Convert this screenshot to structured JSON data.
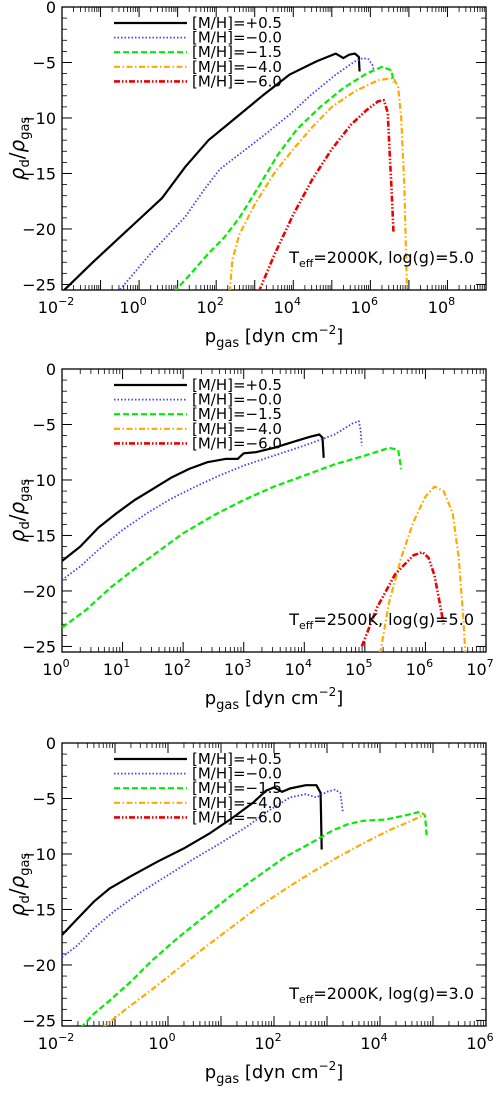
{
  "chart_data": [
    {
      "type": "line",
      "xlabel": "p",
      "xlabel_sub": "gas",
      "xlabel_unit_pre": " [dyn cm",
      "xlabel_unit_exp": "−2",
      "xlabel_unit_post": "]",
      "ylabel_num": "ρ",
      "ylabel_num_sub": "d",
      "ylabel_den": "ρ",
      "ylabel_den_sub": "gas",
      "xscale": "log",
      "xlim": [
        -2,
        9
      ],
      "ylim": [
        -25.5,
        0
      ],
      "xticks_exp": [
        -2,
        0,
        2,
        4,
        6,
        8
      ],
      "yticks": [
        0,
        -5,
        -10,
        -15,
        -20,
        -25
      ],
      "grid": false,
      "legend_position": "top-left",
      "annotation": {
        "T": "T",
        "sub": "eff",
        "rest": "=2000K, log(g)=5.0",
        "position": "bottom-right"
      },
      "series": [
        {
          "name": "[M/H]=+0.5",
          "color": "#000000",
          "dash": "solid",
          "points": [
            [
              -2,
              -25.7
            ],
            [
              -1.2,
              -23
            ],
            [
              -0.3,
              -20.1
            ],
            [
              0.6,
              -17.2
            ],
            [
              1.2,
              -14.4
            ],
            [
              1.8,
              -12
            ],
            [
              2.5,
              -10
            ],
            [
              3.2,
              -8
            ],
            [
              3.9,
              -6.1
            ],
            [
              4.6,
              -4.9
            ],
            [
              5.1,
              -4.2
            ],
            [
              5.3,
              -4.6
            ],
            [
              5.45,
              -4.3
            ],
            [
              5.6,
              -4.2
            ],
            [
              5.7,
              -4.5
            ],
            [
              5.72,
              -5.8
            ]
          ]
        },
        {
          "name": "[M/H]=−0.0",
          "color": "#4040ff",
          "dash": "dotted",
          "points": [
            [
              -0.55,
              -25.7
            ],
            [
              0.3,
              -22.2
            ],
            [
              1.2,
              -18.9
            ],
            [
              1.7,
              -16.4
            ],
            [
              2.1,
              -14.6
            ],
            [
              2.7,
              -13
            ],
            [
              3.3,
              -11.4
            ],
            [
              3.9,
              -9.7
            ],
            [
              4.5,
              -7.8
            ],
            [
              5.1,
              -6.1
            ],
            [
              5.6,
              -4.9
            ],
            [
              5.8,
              -4.6
            ],
            [
              5.95,
              -4.7
            ],
            [
              6.05,
              -5.2
            ],
            [
              6.1,
              -5.8
            ]
          ]
        },
        {
          "name": "[M/H]=−1.5",
          "color": "#00ee00",
          "dash": "dashed",
          "points": [
            [
              0.9,
              -25.7
            ],
            [
              1.35,
              -24
            ],
            [
              1.8,
              -22.2
            ],
            [
              2.2,
              -20.8
            ],
            [
              2.6,
              -19
            ],
            [
              3.1,
              -16.2
            ],
            [
              3.6,
              -13.3
            ],
            [
              4.1,
              -11
            ],
            [
              4.7,
              -9
            ],
            [
              5.3,
              -7.3
            ],
            [
              5.9,
              -6
            ],
            [
              6.3,
              -5.4
            ],
            [
              6.55,
              -5.7
            ],
            [
              6.6,
              -6.8
            ]
          ]
        },
        {
          "name": "[M/H]=−4.0",
          "color": "#ffaa00",
          "dash": "dashdot",
          "points": [
            [
              2.35,
              -25.7
            ],
            [
              2.42,
              -22.8
            ],
            [
              2.6,
              -20.5
            ],
            [
              3,
              -17.8
            ],
            [
              3.5,
              -15
            ],
            [
              4,
              -12.8
            ],
            [
              4.5,
              -10.8
            ],
            [
              5,
              -9
            ],
            [
              5.6,
              -7.6
            ],
            [
              6.2,
              -6.6
            ],
            [
              6.6,
              -6.4
            ],
            [
              6.72,
              -7.2
            ],
            [
              6.8,
              -10
            ],
            [
              6.88,
              -16
            ],
            [
              6.95,
              -25.7
            ]
          ]
        },
        {
          "name": "[M/H]=−6.0",
          "color": "#ee0000",
          "dash": "dashdotdot",
          "points": [
            [
              3.1,
              -25.7
            ],
            [
              3.5,
              -22.4
            ],
            [
              4,
              -18.7
            ],
            [
              4.5,
              -15.5
            ],
            [
              5,
              -12.8
            ],
            [
              5.5,
              -10.6
            ],
            [
              5.9,
              -9.3
            ],
            [
              6.2,
              -8.5
            ],
            [
              6.35,
              -8.4
            ],
            [
              6.45,
              -9.5
            ],
            [
              6.5,
              -13
            ],
            [
              6.55,
              -16.5
            ],
            [
              6.6,
              -20.3
            ]
          ]
        }
      ]
    },
    {
      "type": "line",
      "xlabel": "p",
      "xlabel_sub": "gas",
      "xlabel_unit_pre": " [dyn cm",
      "xlabel_unit_exp": "−2",
      "xlabel_unit_post": "]",
      "ylabel_num": "ρ",
      "ylabel_num_sub": "d",
      "ylabel_den": "ρ",
      "ylabel_den_sub": "gas",
      "xscale": "log",
      "xlim": [
        0,
        7
      ],
      "ylim": [
        -25.5,
        0
      ],
      "xticks_exp": [
        0,
        1,
        2,
        3,
        4,
        5,
        6,
        7
      ],
      "yticks": [
        0,
        -5,
        -10,
        -15,
        -20,
        -25
      ],
      "grid": false,
      "legend_position": "top-left",
      "annotation": {
        "T": "T",
        "sub": "eff",
        "rest": "=2500K, log(g)=5.0",
        "position": "bottom-right"
      },
      "series": [
        {
          "name": "[M/H]=+0.5",
          "color": "#000000",
          "dash": "solid",
          "points": [
            [
              0,
              -17.3
            ],
            [
              0.3,
              -16
            ],
            [
              0.6,
              -14.3
            ],
            [
              0.9,
              -13
            ],
            [
              1.2,
              -11.8
            ],
            [
              1.5,
              -10.8
            ],
            [
              1.8,
              -9.8
            ],
            [
              2.1,
              -9
            ],
            [
              2.4,
              -8.4
            ],
            [
              2.7,
              -8.1
            ],
            [
              2.9,
              -8.1
            ],
            [
              3,
              -7.6
            ],
            [
              3.2,
              -7.5
            ],
            [
              3.5,
              -7.1
            ],
            [
              3.8,
              -6.6
            ],
            [
              4.1,
              -6.1
            ],
            [
              4.25,
              -5.9
            ],
            [
              4.3,
              -6.2
            ],
            [
              4.32,
              -8
            ]
          ]
        },
        {
          "name": "[M/H]=−0.0",
          "color": "#4040ff",
          "dash": "dotted",
          "points": [
            [
              0,
              -19
            ],
            [
              0.3,
              -17.8
            ],
            [
              0.6,
              -16.3
            ],
            [
              1,
              -14.5
            ],
            [
              1.4,
              -13
            ],
            [
              1.8,
              -11.7
            ],
            [
              2.2,
              -10.6
            ],
            [
              2.6,
              -9.6
            ],
            [
              3,
              -8.7
            ],
            [
              3.5,
              -7.8
            ],
            [
              4,
              -6.9
            ],
            [
              4.5,
              -5.9
            ],
            [
              4.8,
              -4.9
            ],
            [
              4.9,
              -4.7
            ],
            [
              4.93,
              -5.5
            ],
            [
              4.95,
              -6.9
            ]
          ]
        },
        {
          "name": "[M/H]=−1.5",
          "color": "#00ee00",
          "dash": "dashed",
          "points": [
            [
              0,
              -23.3
            ],
            [
              0.4,
              -21.7
            ],
            [
              0.8,
              -19.7
            ],
            [
              1.2,
              -18
            ],
            [
              1.6,
              -16.4
            ],
            [
              2,
              -14.8
            ],
            [
              2.5,
              -13.2
            ],
            [
              3,
              -11.8
            ],
            [
              3.5,
              -10.6
            ],
            [
              4,
              -9.6
            ],
            [
              4.5,
              -8.6
            ],
            [
              5,
              -7.8
            ],
            [
              5.4,
              -7.1
            ],
            [
              5.55,
              -7.3
            ],
            [
              5.6,
              -9
            ]
          ]
        },
        {
          "name": "[M/H]=−4.0",
          "color": "#ffaa00",
          "dash": "dashdot",
          "points": [
            [
              5.25,
              -25.7
            ],
            [
              5.4,
              -21
            ],
            [
              5.6,
              -17
            ],
            [
              5.8,
              -13.8
            ],
            [
              6,
              -11.5
            ],
            [
              6.15,
              -10.6
            ],
            [
              6.3,
              -11
            ],
            [
              6.45,
              -13
            ],
            [
              6.55,
              -17
            ],
            [
              6.62,
              -22
            ],
            [
              6.66,
              -25.7
            ]
          ]
        },
        {
          "name": "[M/H]=−6.0",
          "color": "#ee0000",
          "dash": "dashdotdot",
          "points": [
            [
              4.95,
              -25
            ],
            [
              5.2,
              -21.5
            ],
            [
              5.5,
              -18.5
            ],
            [
              5.8,
              -16.8
            ],
            [
              5.95,
              -16.5
            ],
            [
              6.05,
              -17
            ],
            [
              6.15,
              -18.6
            ],
            [
              6.25,
              -21.5
            ],
            [
              6.3,
              -23
            ]
          ]
        }
      ]
    },
    {
      "type": "line",
      "xlabel": "p",
      "xlabel_sub": "gas",
      "xlabel_unit_pre": " [dyn cm",
      "xlabel_unit_exp": "−2",
      "xlabel_unit_post": "]",
      "ylabel_num": "ρ",
      "ylabel_num_sub": "d",
      "ylabel_den": "ρ",
      "ylabel_den_sub": "gas",
      "xscale": "log",
      "xlim": [
        -2,
        6
      ],
      "ylim": [
        -25.5,
        0
      ],
      "xticks_exp": [
        -2,
        0,
        2,
        4,
        6
      ],
      "yticks": [
        0,
        -5,
        -10,
        -15,
        -20,
        -25
      ],
      "grid": false,
      "legend_position": "top-left",
      "annotation": {
        "T": "T",
        "sub": "eff",
        "rest": "=2000K, log(g)=3.0",
        "position": "bottom-right"
      },
      "series": [
        {
          "name": "[M/H]=+0.5",
          "color": "#000000",
          "dash": "solid",
          "points": [
            [
              -2,
              -17.3
            ],
            [
              -1.7,
              -15.8
            ],
            [
              -1.4,
              -14.3
            ],
            [
              -1.1,
              -13.1
            ],
            [
              -0.7,
              -12
            ],
            [
              -0.2,
              -10.7
            ],
            [
              0.3,
              -9.5
            ],
            [
              0.8,
              -8.1
            ],
            [
              1.2,
              -6.8
            ],
            [
              1.6,
              -5.4
            ],
            [
              1.85,
              -4.3
            ],
            [
              2,
              -4
            ],
            [
              2.15,
              -4.4
            ],
            [
              2.3,
              -4.1
            ],
            [
              2.6,
              -3.8
            ],
            [
              2.8,
              -3.8
            ],
            [
              2.88,
              -4.5
            ],
            [
              2.9,
              -9.6
            ]
          ]
        },
        {
          "name": "[M/H]=−0.0",
          "color": "#4040ff",
          "dash": "dotted",
          "points": [
            [
              -2,
              -19.3
            ],
            [
              -1.7,
              -18.2
            ],
            [
              -1.4,
              -16.7
            ],
            [
              -1,
              -15.1
            ],
            [
              -0.5,
              -13.4
            ],
            [
              0,
              -11.9
            ],
            [
              0.5,
              -10.4
            ],
            [
              1,
              -9
            ],
            [
              1.5,
              -7.5
            ],
            [
              1.9,
              -6.1
            ],
            [
              2.3,
              -4.9
            ],
            [
              2.6,
              -4.6
            ],
            [
              2.8,
              -4.9
            ],
            [
              3,
              -4.4
            ],
            [
              3.15,
              -4.2
            ],
            [
              3.25,
              -4.5
            ],
            [
              3.3,
              -6.3
            ]
          ]
        },
        {
          "name": "[M/H]=−1.5",
          "color": "#00ee00",
          "dash": "dashed",
          "points": [
            [
              -1.65,
              -25.7
            ],
            [
              -1.4,
              -24.4
            ],
            [
              -1.1,
              -23.2
            ],
            [
              -0.7,
              -21.5
            ],
            [
              -0.3,
              -19.6
            ],
            [
              0.2,
              -17.5
            ],
            [
              0.7,
              -15.6
            ],
            [
              1.2,
              -13.7
            ],
            [
              1.7,
              -12
            ],
            [
              2.2,
              -10.3
            ],
            [
              2.7,
              -9
            ],
            [
              3.1,
              -7.9
            ],
            [
              3.4,
              -7.3
            ],
            [
              3.7,
              -7
            ],
            [
              4.1,
              -6.9
            ],
            [
              4.5,
              -6.5
            ],
            [
              4.75,
              -6.2
            ],
            [
              4.85,
              -6.5
            ],
            [
              4.88,
              -8.3
            ]
          ]
        },
        {
          "name": "[M/H]=−4.0",
          "color": "#ffaa00",
          "dash": "dashdot",
          "points": [
            [
              -1.25,
              -25.7
            ],
            [
              -0.8,
              -24
            ],
            [
              -0.3,
              -22.2
            ],
            [
              0.2,
              -20.3
            ],
            [
              0.7,
              -18.4
            ],
            [
              1.2,
              -16.6
            ],
            [
              1.7,
              -14.8
            ],
            [
              2.2,
              -13.2
            ],
            [
              2.7,
              -11.7
            ],
            [
              3.2,
              -10.3
            ],
            [
              3.7,
              -9
            ],
            [
              4.2,
              -7.8
            ],
            [
              4.6,
              -7
            ],
            [
              4.85,
              -6.4
            ]
          ]
        },
        {
          "name": "[M/H]=−6.0",
          "color": "#ee0000",
          "dash": "dashdotdot",
          "points": []
        }
      ]
    }
  ]
}
